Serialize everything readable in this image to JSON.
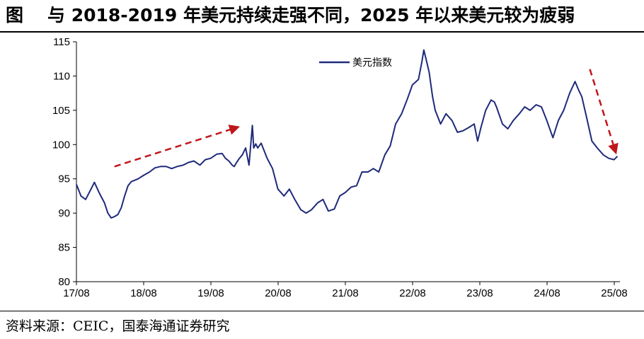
{
  "figure": {
    "label": "图",
    "title": "与 2018-2019 年美元持续走强不同，2025 年以来美元较为疲弱",
    "source": "资料来源：CEIC，国泰海通证券研究"
  },
  "chart_data": {
    "type": "line",
    "title": "与 2018-2019 年美元持续走强不同，2025 年以来美元较为疲弱",
    "xlabel": "",
    "ylabel": "",
    "ylim": [
      80,
      115
    ],
    "yticks": [
      80,
      85,
      90,
      95,
      100,
      105,
      110,
      115
    ],
    "xlim": [
      2017.583,
      2025.667
    ],
    "xtick_labels": [
      "17/08",
      "18/08",
      "19/08",
      "20/08",
      "21/08",
      "22/08",
      "23/08",
      "24/08",
      "25/08"
    ],
    "xtick_values": [
      2017.583,
      2018.583,
      2019.583,
      2020.583,
      2021.583,
      2022.583,
      2023.583,
      2024.583,
      2025.583
    ],
    "grid": false,
    "legend_position": "top-center",
    "series": [
      {
        "name": "美元指数",
        "color": "#1f2a7a",
        "x": [
          2017.583,
          2017.65,
          2017.72,
          2017.8,
          2017.85,
          2017.92,
          2018.0,
          2018.05,
          2018.1,
          2018.15,
          2018.2,
          2018.25,
          2018.3,
          2018.35,
          2018.4,
          2018.45,
          2018.5,
          2018.58,
          2018.67,
          2018.75,
          2018.83,
          2018.92,
          2019.0,
          2019.08,
          2019.17,
          2019.25,
          2019.33,
          2019.42,
          2019.5,
          2019.58,
          2019.67,
          2019.75,
          2019.8,
          2019.85,
          2019.9,
          2019.93,
          2019.96,
          2020.0,
          2020.05,
          2020.1,
          2020.15,
          2020.2,
          2020.22,
          2020.25,
          2020.28,
          2020.33,
          2020.42,
          2020.5,
          2020.58,
          2020.67,
          2020.75,
          2020.83,
          2020.92,
          2021.0,
          2021.08,
          2021.17,
          2021.25,
          2021.33,
          2021.42,
          2021.5,
          2021.58,
          2021.67,
          2021.75,
          2021.83,
          2021.92,
          2022.0,
          2022.08,
          2022.17,
          2022.25,
          2022.33,
          2022.42,
          2022.5,
          2022.58,
          2022.67,
          2022.72,
          2022.75,
          2022.8,
          2022.83,
          2022.88,
          2022.92,
          2023.0,
          2023.08,
          2023.17,
          2023.25,
          2023.33,
          2023.42,
          2023.5,
          2023.55,
          2023.6,
          2023.67,
          2023.75,
          2023.8,
          2023.83,
          2023.92,
          2024.0,
          2024.08,
          2024.17,
          2024.25,
          2024.33,
          2024.42,
          2024.5,
          2024.58,
          2024.67,
          2024.75,
          2024.83,
          2024.92,
          2025.0,
          2025.05,
          2025.1,
          2025.17,
          2025.25,
          2025.33,
          2025.42,
          2025.5,
          2025.58,
          2025.63
        ],
        "values": [
          94.2,
          92.5,
          92.0,
          93.5,
          94.5,
          93.0,
          91.5,
          90.0,
          89.3,
          89.5,
          89.8,
          90.8,
          92.5,
          94.0,
          94.6,
          94.8,
          95.0,
          95.5,
          96.0,
          96.6,
          96.8,
          96.8,
          96.5,
          96.8,
          97.0,
          97.4,
          97.6,
          97.0,
          97.8,
          98.0,
          98.6,
          98.7,
          98.0,
          97.6,
          97.0,
          96.8,
          97.3,
          97.9,
          98.5,
          99.5,
          97.0,
          102.8,
          99.5,
          100.1,
          99.5,
          100.2,
          98.0,
          96.5,
          93.5,
          92.5,
          93.5,
          92.0,
          90.5,
          90.0,
          90.5,
          91.5,
          92.0,
          90.3,
          90.6,
          92.5,
          93.0,
          93.8,
          94.0,
          96.0,
          96.0,
          96.5,
          96.0,
          98.5,
          99.8,
          103.0,
          104.5,
          106.5,
          108.7,
          109.5,
          112.0,
          113.8,
          111.8,
          110.5,
          107.0,
          105.0,
          103.0,
          104.5,
          103.5,
          101.8,
          102.0,
          102.5,
          103.0,
          100.5,
          102.5,
          105.0,
          106.5,
          106.2,
          105.5,
          103.0,
          102.3,
          103.5,
          104.5,
          105.5,
          105.0,
          105.8,
          105.5,
          103.5,
          101.0,
          103.5,
          105.0,
          107.5,
          109.2,
          108.0,
          107.0,
          104.0,
          100.5,
          99.5,
          98.5,
          98.0,
          97.8,
          98.3
        ]
      }
    ],
    "annotations": [
      {
        "type": "arrow",
        "style": "dashed",
        "color": "#c0161b",
        "from": [
          2018.15,
          96.8
        ],
        "to": [
          2019.97,
          102.5
        ]
      },
      {
        "type": "arrow",
        "style": "dashed",
        "color": "#c0161b",
        "from": [
          2025.22,
          111.0
        ],
        "to": [
          2025.6,
          99.0
        ]
      }
    ]
  }
}
